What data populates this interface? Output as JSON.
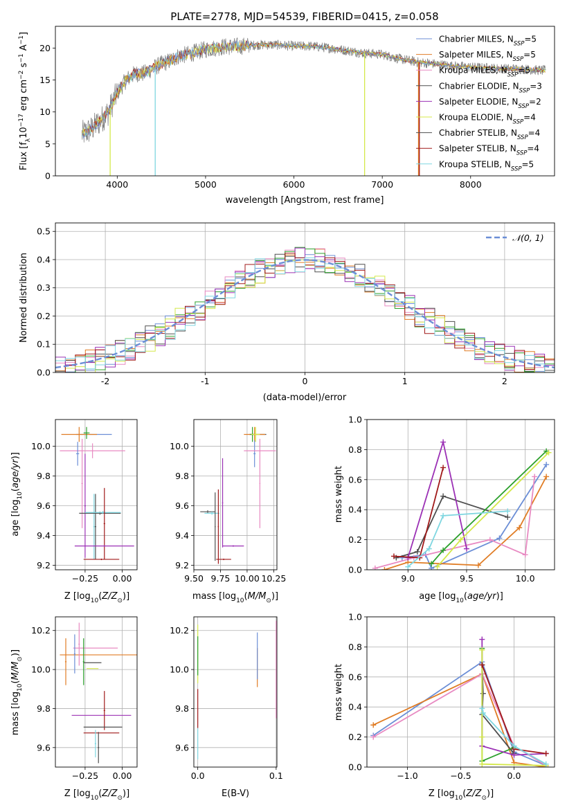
{
  "figure": {
    "title": "PLATE=2778, MJD=54539, FIBERID=0415, z=0.058",
    "colors": [
      "#6b8ed6",
      "#e07c24",
      "#e88ac2",
      "#4f4f4f",
      "#2ca02c",
      "#8a8a8a",
      "#9b30b5",
      "#d4e84a",
      "#a01818",
      "#7ed6e0"
    ]
  },
  "legend_entries": [
    {
      "label": "Chabrier MILES, N",
      "sub": "SSP",
      "tail": "=5",
      "color": "#6b8ed6"
    },
    {
      "label": "Salpeter MILES, N",
      "sub": "SSP",
      "tail": "=5",
      "color": "#e07c24"
    },
    {
      "label": "Kroupa MILES, N",
      "sub": "SSP",
      "tail": "=5",
      "color": "#e88ac2"
    },
    {
      "label": "Chabrier ELODIE, N",
      "sub": "SSP",
      "tail": "=3",
      "color": "#4f4f4f"
    },
    {
      "label": "Salpeter ELODIE, N",
      "sub": "SSP",
      "tail": "=2",
      "color": "#9b30b5"
    },
    {
      "label": "Kroupa ELODIE, N",
      "sub": "SSP",
      "tail": "=4",
      "color": "#d4e84a"
    },
    {
      "label": "Chabrier STELIB, N",
      "sub": "SSP",
      "tail": "=4",
      "color": "#4f4f4f"
    },
    {
      "label": "Salpeter STELIB, N",
      "sub": "SSP",
      "tail": "=4",
      "color": "#a01818"
    },
    {
      "label": "Kroupa STELIB, N",
      "sub": "SSP",
      "tail": "=5",
      "color": "#7ed6e0"
    }
  ],
  "hist_legend": "𝒩(0, 1)",
  "chart_data": [
    {
      "id": "spectrum",
      "type": "line",
      "xlabel": "wavelength [Angstrom, rest frame]",
      "ylabel": "Flux [f_λ10^-17 erg cm^-2 s^-1 A^-1]",
      "xlim": [
        3300,
        8950
      ],
      "ylim": [
        0,
        23.4
      ],
      "xticks": [
        4000,
        5000,
        6000,
        7000,
        8000
      ],
      "yticks": [
        0,
        5,
        10,
        15,
        20
      ],
      "continuum_x": [
        3600,
        3700,
        3800,
        3900,
        4000,
        4100,
        4200,
        4300,
        4400,
        4500,
        4600,
        4700,
        4800,
        5000,
        5200,
        5400,
        5600,
        5800,
        6000,
        6200,
        6400,
        6600,
        6800,
        7000,
        7200,
        7400,
        7600,
        7800,
        8000,
        8300,
        8600,
        8800
      ],
      "continuum_y": [
        6.5,
        7.2,
        8.5,
        10,
        13,
        15,
        16,
        16,
        16.8,
        17.5,
        18,
        18.8,
        19,
        19.8,
        20.2,
        20.3,
        20.5,
        20.5,
        20.3,
        20.3,
        20.0,
        19.6,
        19.2,
        19.0,
        18.3,
        17.8,
        17.5,
        17.2,
        17.0,
        16.8,
        16.7,
        16.5
      ],
      "grid": false
    },
    {
      "id": "residual-histogram",
      "type": "line",
      "xlabel": "(data-model)/error",
      "ylabel": "Normed distribution",
      "xlim": [
        -2.5,
        2.5
      ],
      "ylim": [
        0,
        0.53
      ],
      "xticks": [
        -2,
        -1,
        0,
        1,
        2
      ],
      "yticks": [
        0.0,
        0.1,
        0.2,
        0.3,
        0.4,
        0.5
      ],
      "series_name": "N(0,1)",
      "gaussian": {
        "mu": 0,
        "sigma": 1
      },
      "bin_width": 0.1,
      "grid": true,
      "legend_loc": "upper right"
    },
    {
      "id": "age-vs-Z",
      "type": "scatter",
      "xlabel": "Z [log10(Z/Z⊙)]",
      "ylabel": "age  [log10(age/yr)]",
      "xlim": [
        -0.45,
        0.1
      ],
      "ylim": [
        9.17,
        10.18
      ],
      "xticks": [
        -0.25,
        0.0
      ],
      "yticks": [
        9.2,
        9.4,
        9.6,
        9.8,
        10.0
      ],
      "grid": true,
      "errorbars": [
        {
          "x": -0.19,
          "y": 10.08,
          "xerr": 0.12,
          "yerr": 0.0,
          "c": 0
        },
        {
          "x": -0.29,
          "y": 10.08,
          "xerr": 0.12,
          "yerr": 0.05,
          "c": 1
        },
        {
          "x": -0.2,
          "y": 9.97,
          "xerr": 0.22,
          "yerr": 0.05,
          "c": 2
        },
        {
          "x": -0.24,
          "y": 10.09,
          "xerr": 0.02,
          "yerr": 0.04,
          "c": 4
        },
        {
          "x": -0.3,
          "y": 9.95,
          "xerr": 0.01,
          "yerr": 0.08,
          "c": 0
        },
        {
          "x": -0.27,
          "y": 9.75,
          "xerr": 0.005,
          "yerr": 0.3,
          "c": 2
        },
        {
          "x": -0.25,
          "y": 9.6,
          "xerr": 0.005,
          "yerr": 0.35,
          "c": 6
        },
        {
          "x": -0.19,
          "y": 9.46,
          "xerr": 0.005,
          "yerr": 0.22,
          "c": 9
        },
        {
          "x": -0.18,
          "y": 9.46,
          "xerr": 0.005,
          "yerr": 0.22,
          "c": 3
        },
        {
          "x": -0.15,
          "y": 9.55,
          "xerr": 0.14,
          "yerr": 0.01,
          "c": 3
        },
        {
          "x": -0.13,
          "y": 9.555,
          "xerr": 0.12,
          "yerr": 0.01,
          "c": 9
        },
        {
          "x": -0.12,
          "y": 9.48,
          "xerr": 0.005,
          "yerr": 0.24,
          "c": 8
        },
        {
          "x": -0.14,
          "y": 9.24,
          "xerr": 0.12,
          "yerr": 0.005,
          "c": 8
        },
        {
          "x": -0.12,
          "y": 9.33,
          "xerr": 0.2,
          "yerr": 0.005,
          "c": 6
        }
      ]
    },
    {
      "id": "age-vs-mass",
      "type": "scatter",
      "xlabel": "mass [log10(M/M⊙)]",
      "ylabel": "",
      "xlim": [
        9.5,
        10.28
      ],
      "ylim": [
        9.17,
        10.18
      ],
      "xticks": [
        9.5,
        9.75,
        10.0,
        10.25
      ],
      "yticks": [
        9.2,
        9.4,
        9.6,
        9.8,
        10.0
      ],
      "grid": true,
      "errorbars": [
        {
          "x": 10.1,
          "y": 10.08,
          "xerr": 0.08,
          "yerr": 0.0,
          "c": 3
        },
        {
          "x": 10.07,
          "y": 10.08,
          "xerr": 0.1,
          "yerr": 0.05,
          "c": 1
        },
        {
          "x": 10.05,
          "y": 10.08,
          "xerr": 0.02,
          "yerr": 0.05,
          "c": 4
        },
        {
          "x": 10.08,
          "y": 10.08,
          "xerr": 0.04,
          "yerr": 0.05,
          "c": 7
        },
        {
          "x": 10.07,
          "y": 9.95,
          "xerr": 0.01,
          "yerr": 0.09,
          "c": 0
        },
        {
          "x": 10.12,
          "y": 9.97,
          "xerr": 0.15,
          "yerr": 0.0,
          "c": 2
        },
        {
          "x": 10.12,
          "y": 9.75,
          "xerr": 0.005,
          "yerr": 0.3,
          "c": 2
        },
        {
          "x": 9.77,
          "y": 9.62,
          "xerr": 0.005,
          "yerr": 0.3,
          "c": 6
        },
        {
          "x": 9.63,
          "y": 9.56,
          "xerr": 0.07,
          "yerr": 0.01,
          "c": 3
        },
        {
          "x": 9.67,
          "y": 9.55,
          "xerr": 0.07,
          "yerr": 0.01,
          "c": 9
        },
        {
          "x": 9.7,
          "y": 9.46,
          "xerr": 0.005,
          "yerr": 0.23,
          "c": 3
        },
        {
          "x": 9.73,
          "y": 9.46,
          "xerr": 0.005,
          "yerr": 0.25,
          "c": 8
        },
        {
          "x": 9.78,
          "y": 9.24,
          "xerr": 0.07,
          "yerr": 0.005,
          "c": 8
        },
        {
          "x": 9.87,
          "y": 9.33,
          "xerr": 0.1,
          "yerr": 0.005,
          "c": 6
        }
      ]
    },
    {
      "id": "mass-weight-vs-age",
      "type": "line",
      "xlabel": "age  [log10(age/yr)]",
      "ylabel": "mass weight",
      "xlim": [
        8.65,
        10.25
      ],
      "ylim": [
        0,
        1
      ],
      "xticks": [
        9.0,
        9.5,
        10.0
      ],
      "yticks": [
        0.0,
        0.2,
        0.4,
        0.6,
        0.8,
        1.0
      ],
      "grid": true,
      "series": [
        {
          "c": 0,
          "x": [
            8.95,
            9.15,
            9.2,
            9.78,
            10.18
          ],
          "y": [
            0.08,
            0.1,
            0.01,
            0.21,
            0.7
          ]
        },
        {
          "c": 1,
          "x": [
            8.8,
            9.0,
            9.6,
            9.95,
            10.18
          ],
          "y": [
            0.0,
            0.05,
            0.03,
            0.28,
            0.62
          ]
        },
        {
          "c": 2,
          "x": [
            8.72,
            9.05,
            9.7,
            10.0,
            10.08
          ],
          "y": [
            0.01,
            0.08,
            0.2,
            0.1,
            0.62
          ]
        },
        {
          "c": 3,
          "x": [
            8.9,
            9.08,
            9.3,
            9.85
          ],
          "y": [
            0.08,
            0.12,
            0.49,
            0.35
          ]
        },
        {
          "c": 4,
          "x": [
            9.2,
            9.3,
            10.18
          ],
          "y": [
            0.04,
            0.13,
            0.79
          ]
        },
        {
          "c": 6,
          "x": [
            9.0,
            9.3,
            9.5
          ],
          "y": [
            0.08,
            0.85,
            0.14
          ]
        },
        {
          "c": 7,
          "x": [
            9.25,
            9.45,
            10.2
          ],
          "y": [
            0.02,
            0.2,
            0.78
          ]
        },
        {
          "c": 8,
          "x": [
            8.88,
            9.1,
            9.3
          ],
          "y": [
            0.09,
            0.08,
            0.68
          ]
        },
        {
          "c": 9,
          "x": [
            9.0,
            9.18,
            9.3,
            9.85
          ],
          "y": [
            0.02,
            0.14,
            0.36,
            0.39
          ]
        }
      ]
    },
    {
      "id": "mass-vs-Z",
      "type": "scatter",
      "xlabel": "Z [log10(Z/Z⊙)]",
      "ylabel": "mass [log10(M/M⊙)]",
      "xlim": [
        -0.45,
        0.1
      ],
      "ylim": [
        9.5,
        10.27
      ],
      "xticks": [
        -0.25,
        0.0
      ],
      "yticks": [
        9.6,
        9.8,
        10.0,
        10.2
      ],
      "grid": true,
      "errorbars": [
        {
          "x": -0.15,
          "y": 10.075,
          "xerr": 0.27,
          "yerr": 0.0,
          "c": 1
        },
        {
          "x": -0.38,
          "y": 10.04,
          "xerr": 0.005,
          "yerr": 0.12,
          "c": 1
        },
        {
          "x": -0.18,
          "y": 10.11,
          "xerr": 0.15,
          "yerr": 0.0,
          "c": 2
        },
        {
          "x": -0.29,
          "y": 10.13,
          "xerr": 0.005,
          "yerr": 0.11,
          "c": 2
        },
        {
          "x": -0.26,
          "y": 10.04,
          "xerr": 0.005,
          "yerr": 0.12,
          "c": 4
        },
        {
          "x": -0.2,
          "y": 10.035,
          "xerr": 0.06,
          "yerr": 0.0,
          "c": 3
        },
        {
          "x": -0.32,
          "y": 10.08,
          "xerr": 0.005,
          "yerr": 0.1,
          "c": 0
        },
        {
          "x": -0.2,
          "y": 10.005,
          "xerr": 0.04,
          "yerr": 0.0,
          "c": 7
        },
        {
          "x": -0.14,
          "y": 9.765,
          "xerr": 0.2,
          "yerr": 0.0,
          "c": 6
        },
        {
          "x": -0.12,
          "y": 9.79,
          "xerr": 0.005,
          "yerr": 0.1,
          "c": 8
        },
        {
          "x": -0.13,
          "y": 9.705,
          "xerr": 0.13,
          "yerr": 0.0,
          "c": 3
        },
        {
          "x": -0.14,
          "y": 9.675,
          "xerr": 0.12,
          "yerr": 0.0,
          "c": 8
        },
        {
          "x": -0.16,
          "y": 9.6,
          "xerr": 0.005,
          "yerr": 0.08,
          "c": 3
        },
        {
          "x": -0.18,
          "y": 9.62,
          "xerr": 0.005,
          "yerr": 0.07,
          "c": 9
        }
      ]
    },
    {
      "id": "ebv",
      "type": "scatter",
      "xlabel": "E(B-V)",
      "ylabel": "",
      "xlim": [
        -0.005,
        0.101
      ],
      "ylim": [
        9.5,
        10.27
      ],
      "xticks": [
        0.0,
        0.1
      ],
      "yticks": [
        9.6,
        9.8,
        10.0,
        10.2
      ],
      "grid": true,
      "errorbars": [
        {
          "x": 0.0,
          "y": 10.08,
          "xerr": 0,
          "yerr": 0.15,
          "c": 7
        },
        {
          "x": 0.0,
          "y": 9.8,
          "xerr": 0,
          "yerr": 0.1,
          "c": 8
        },
        {
          "x": 0.0,
          "y": 9.62,
          "xerr": 0,
          "yerr": 0.08,
          "c": 9
        },
        {
          "x": 0.0,
          "y": 10.07,
          "xerr": 0,
          "yerr": 0.1,
          "c": 4
        },
        {
          "x": 0.076,
          "y": 10.01,
          "xerr": 0,
          "yerr": 0.1,
          "c": 1
        },
        {
          "x": 0.076,
          "y": 10.07,
          "xerr": 0,
          "yerr": 0.12,
          "c": 0
        },
        {
          "x": 0.1,
          "y": 10.0,
          "xerr": 0,
          "yerr": 0.25,
          "c": 2
        }
      ]
    },
    {
      "id": "mass-weight-vs-Z",
      "type": "line",
      "xlabel": "Z [log10(Z/Z⊙)]",
      "ylabel": "mass weight",
      "xlim": [
        -1.38,
        0.38
      ],
      "ylim": [
        0,
        1
      ],
      "xticks": [
        -1.0,
        -0.5,
        0.0
      ],
      "yticks": [
        0.0,
        0.2,
        0.4,
        0.6,
        0.8,
        1.0
      ],
      "grid": true,
      "series": [
        {
          "c": 0,
          "x": [
            -1.32,
            -0.3,
            0.0,
            0.3
          ],
          "y": [
            0.21,
            0.7,
            0.1,
            0.01
          ]
        },
        {
          "c": 1,
          "x": [
            -1.32,
            -0.3,
            0.0,
            0.3
          ],
          "y": [
            0.28,
            0.62,
            0.03,
            0.0
          ]
        },
        {
          "c": 2,
          "x": [
            -1.32,
            -0.3,
            0.0,
            0.3
          ],
          "y": [
            0.2,
            0.62,
            0.14,
            0.01
          ]
        },
        {
          "c": 3,
          "x": [
            -0.3,
            -0.29,
            -0.3,
            0.0
          ],
          "y": [
            0.68,
            0.49,
            0.35,
            0.09
          ]
        },
        {
          "c": 4,
          "x": [
            -0.3,
            -0.3,
            0.0
          ],
          "y": [
            0.79,
            0.04,
            0.13
          ]
        },
        {
          "c": 6,
          "x": [
            -0.3,
            -0.3,
            0.0,
            0.3
          ],
          "y": [
            0.85,
            0.14,
            0.08,
            0.09
          ]
        },
        {
          "c": 7,
          "x": [
            -0.3,
            -0.3,
            -0.3,
            0.3
          ],
          "y": [
            0.78,
            0.2,
            0.02,
            0.01
          ]
        },
        {
          "c": 8,
          "x": [
            -0.3,
            0.0,
            0.3
          ],
          "y": [
            0.68,
            0.12,
            0.09
          ]
        },
        {
          "c": 9,
          "x": [
            -0.3,
            -0.29,
            0.0,
            0.3
          ],
          "y": [
            0.39,
            0.36,
            0.14,
            0.02
          ]
        }
      ]
    }
  ]
}
